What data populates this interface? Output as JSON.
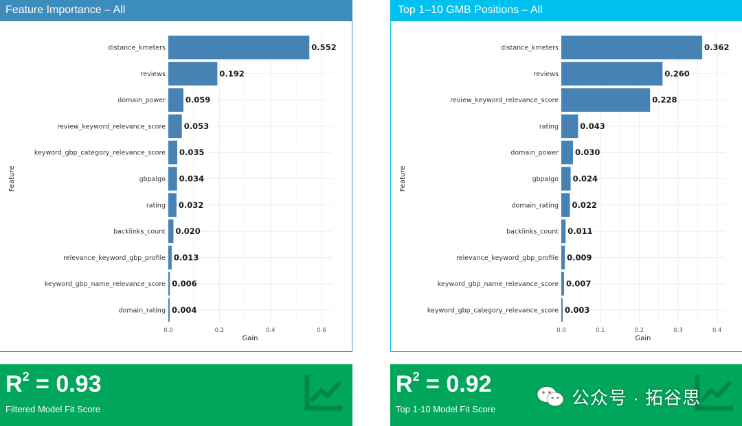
{
  "charts": [
    {
      "title": "Feature Importance – All",
      "color": "#3c8dbc",
      "chart_data": {
        "type": "bar",
        "orientation": "horizontal",
        "categories": [
          "distance_kmeters",
          "reviews",
          "domain_power",
          "review_keyword_relevance_score",
          "keyword_gbp_category_relevance_score",
          "gbpalgo",
          "rating",
          "backlinks_count",
          "relevance_keyword_gbp_profile",
          "keyword_gbp_name_relevance_score",
          "domain_rating"
        ],
        "values": [
          0.552,
          0.192,
          0.059,
          0.053,
          0.035,
          0.034,
          0.032,
          0.02,
          0.013,
          0.006,
          0.004
        ],
        "value_labels": [
          "0.552",
          "0.192",
          "0.059",
          "0.053",
          "0.035",
          "0.034",
          "0.032",
          "0.020",
          "0.013",
          "0.006",
          "0.004"
        ],
        "xlabel": "Gain",
        "ylabel": "Feature",
        "xlim": [
          0,
          0.64
        ],
        "xticks": [
          0.0,
          0.2,
          0.4,
          0.6
        ],
        "xtick_labels": [
          "0.0",
          "0.2",
          "0.4",
          "0.6"
        ],
        "bar_color": "#4682b4",
        "grid": true
      }
    },
    {
      "title": "Top 1–10 GMB Positions – All",
      "color": "#00c0ef",
      "chart_data": {
        "type": "bar",
        "orientation": "horizontal",
        "categories": [
          "distance_kmeters",
          "reviews",
          "review_keyword_relevance_score",
          "rating",
          "domain_power",
          "gbpalgo",
          "domain_rating",
          "backlinks_count",
          "relevance_keyword_gbp_profile",
          "keyword_gbp_name_relevance_score",
          "keyword_gbp_category_relevance_score"
        ],
        "values": [
          0.362,
          0.26,
          0.228,
          0.043,
          0.03,
          0.024,
          0.022,
          0.011,
          0.009,
          0.007,
          0.003
        ],
        "value_labels": [
          "0.362",
          "0.260",
          "0.228",
          "0.043",
          "0.030",
          "0.024",
          "0.022",
          "0.011",
          "0.009",
          "0.007",
          "0.003"
        ],
        "xlabel": "Gain",
        "ylabel": "Feature",
        "xlim": [
          0,
          0.42
        ],
        "xticks": [
          0.0,
          0.1,
          0.2,
          0.3,
          0.4
        ],
        "xtick_labels": [
          "0.0",
          "0.1",
          "0.2",
          "0.3",
          "0.4"
        ],
        "bar_color": "#4682b4",
        "grid": true
      }
    }
  ],
  "kpis": [
    {
      "prefix": "R",
      "superscript": "2",
      "value": " = 0.93",
      "label": "Filtered Model Fit Score",
      "icon": "line-chart-icon",
      "color": "#00a65a"
    },
    {
      "prefix": "R",
      "superscript": "2",
      "value": " = 0.92",
      "label": "Top 1-10 Model Fit Score",
      "icon": "line-chart-icon",
      "color": "#00a65a"
    }
  ],
  "watermark": {
    "text": "公众号 · 拓谷思",
    "icon": "wechat-icon"
  }
}
